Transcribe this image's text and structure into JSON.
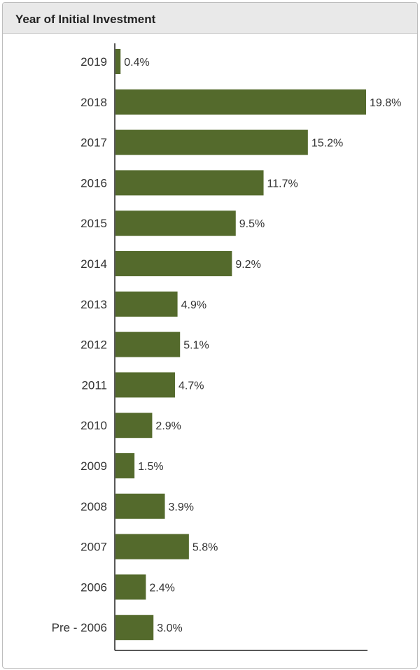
{
  "header": {
    "title": "Year of Initial Investment"
  },
  "colors": {
    "bar": "#546a2c",
    "axis": "#222222"
  },
  "chart_data": {
    "type": "bar",
    "orientation": "horizontal",
    "categories": [
      "2019",
      "2018",
      "2017",
      "2016",
      "2015",
      "2014",
      "2013",
      "2012",
      "2011",
      "2010",
      "2009",
      "2008",
      "2007",
      "2006",
      "Pre - 2006"
    ],
    "values": [
      0.4,
      19.8,
      15.2,
      11.7,
      9.5,
      9.2,
      4.9,
      5.1,
      4.7,
      2.9,
      1.5,
      3.9,
      5.8,
      2.4,
      3.0
    ],
    "value_labels": [
      "0.4%",
      "19.8%",
      "15.2%",
      "11.7%",
      "9.5%",
      "9.2%",
      "4.9%",
      "5.1%",
      "4.7%",
      "2.9%",
      "1.5%",
      "3.9%",
      "5.8%",
      "2.4%",
      "3.0%"
    ],
    "title": "Year of Initial Investment",
    "xlim": [
      0,
      20
    ],
    "grid": false,
    "legend": "none"
  }
}
